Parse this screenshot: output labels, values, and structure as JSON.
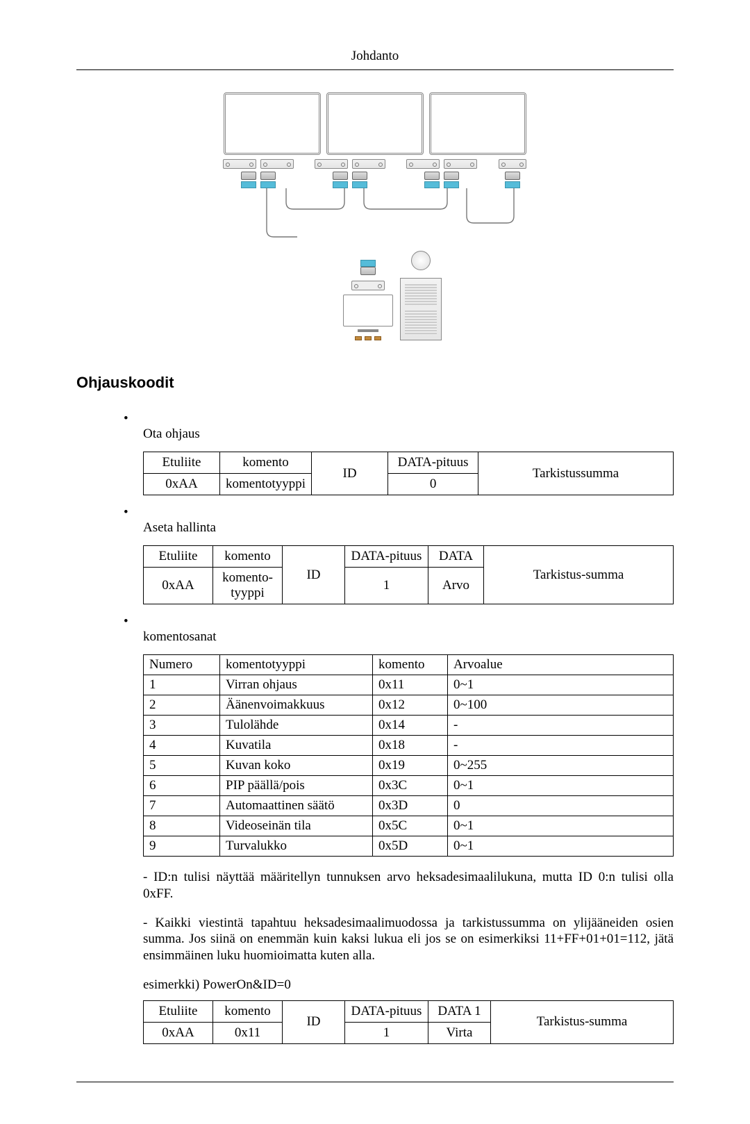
{
  "header": "Johdanto",
  "section_title": "Ohjauskoodit",
  "bullets": {
    "b1": "Ota ohjaus",
    "b2": "Aseta hallinta",
    "b3": "komentosanat"
  },
  "table1": {
    "h1": "Etuliite",
    "h2": "komento",
    "h3": "ID",
    "h4": "DATA-pituus",
    "h5": "Tarkistussumma",
    "r1c1": "0xAA",
    "r1c2": "komentotyyppi",
    "r1c4": "0"
  },
  "table2": {
    "h1": "Etuliite",
    "h2": "komento",
    "h3": "ID",
    "h4": "DATA-pituus",
    "h5": "DATA",
    "h6": "Tarkistus-summa",
    "r1c1": "0xAA",
    "r1c2": "komento-tyyppi",
    "r1c4": "1",
    "r1c5": "Arvo"
  },
  "cmds": {
    "head": {
      "c1": "Numero",
      "c2": "komentotyyppi",
      "c3": "komento",
      "c4": "Arvoalue"
    },
    "rows": [
      {
        "n": "1",
        "t": "Virran ohjaus",
        "c": "0x11",
        "r": "0~1"
      },
      {
        "n": "2",
        "t": "Äänenvoimakkuus",
        "c": "0x12",
        "r": "0~100"
      },
      {
        "n": "3",
        "t": "Tulolähde",
        "c": "0x14",
        "r": "-"
      },
      {
        "n": "4",
        "t": "Kuvatila",
        "c": "0x18",
        "r": "-"
      },
      {
        "n": "5",
        "t": "Kuvan koko",
        "c": "0x19",
        "r": "0~255"
      },
      {
        "n": "6",
        "t": "PIP päällä/pois",
        "c": "0x3C",
        "r": "0~1"
      },
      {
        "n": "7",
        "t": "Automaattinen säätö",
        "c": "0x3D",
        "r": "0"
      },
      {
        "n": "8",
        "t": "Videoseinän tila",
        "c": "0x5C",
        "r": "0~1"
      },
      {
        "n": "9",
        "t": "Turvalukko",
        "c": "0x5D",
        "r": "0~1"
      }
    ]
  },
  "prose1": "- ID:n tulisi näyttää määritellyn tunnuksen arvo heksadesimaalilukuna, mutta ID 0:n tulisi olla 0xFF.",
  "prose2": "- Kaikki viestintä tapahtuu heksadesimaalimuodossa ja tarkistussumma on ylijääneiden osien summa. Jos siinä on enemmän kuin kaksi lukua eli jos se on esimerkiksi 11+FF+01+01=112, jätä ensimmäinen luku huomioimatta kuten alla.",
  "example_label": "esimerkki) PowerOn&ID=0",
  "table3": {
    "h1": "Etuliite",
    "h2": "komento",
    "h3": "ID",
    "h4": "DATA-pituus",
    "h5": "DATA 1",
    "h6": "Tarkistus-summa",
    "r1c1": "0xAA",
    "r1c2": "0x11",
    "r1c4": "1",
    "r1c5": "Virta"
  },
  "style": {
    "page_bg": "#ffffff",
    "text_color": "#000000",
    "border_color": "#000000",
    "body_font": "Times New Roman",
    "heading_font": "Arial",
    "body_fontsize_pt": 14,
    "heading_fontsize_pt": 16,
    "accent_blue": "#55bcd9"
  }
}
